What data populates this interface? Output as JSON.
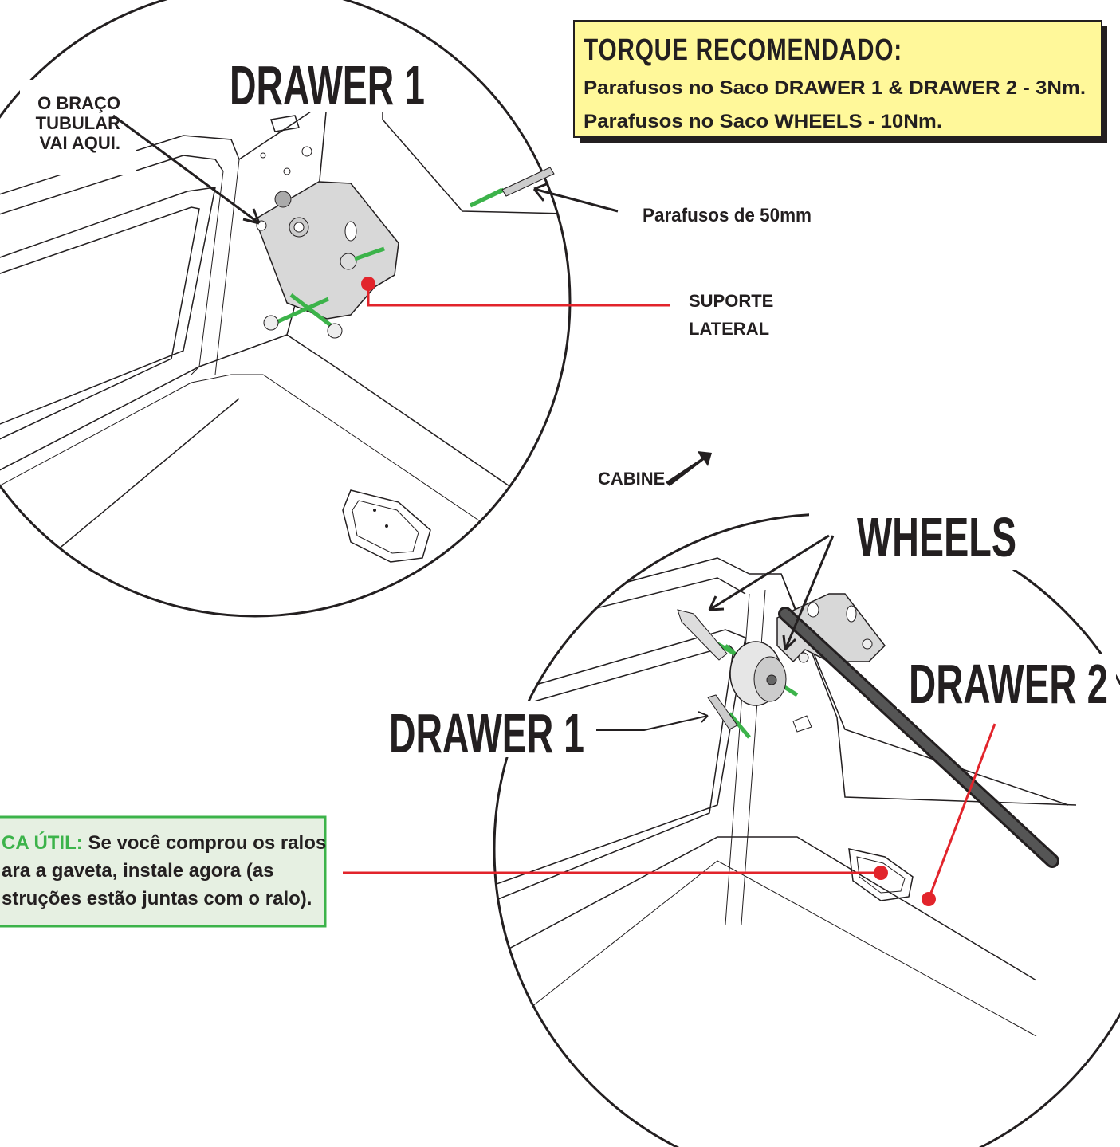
{
  "labels": {
    "drawer1_top": "DRAWER 1",
    "tube_note": [
      "O BRAÇO",
      "TUBULAR",
      "VAI AQUI."
    ],
    "screws_50": "Parafusos de 50mm",
    "side_support": [
      "SUPORTE",
      "LATERAL"
    ],
    "cabin": "CABINE",
    "wheels": "WHEELS",
    "drawer2": "DRAWER 2",
    "drawer1_bottom": "DRAWER 1"
  },
  "torque": {
    "title": "TORQUE RECOMENDADO:",
    "lines": [
      "Parafusos no Saco DRAWER 1 & DRAWER 2 - 3Nm.",
      "Parafusos no Saco WHEELS - 10Nm."
    ]
  },
  "tip": {
    "label": "CA ÚTIL:",
    "lines": [
      "Se você comprou os ralos",
      "ara a gaveta, instale agora (as",
      "struções estão  juntas com o ralo)."
    ]
  }
}
